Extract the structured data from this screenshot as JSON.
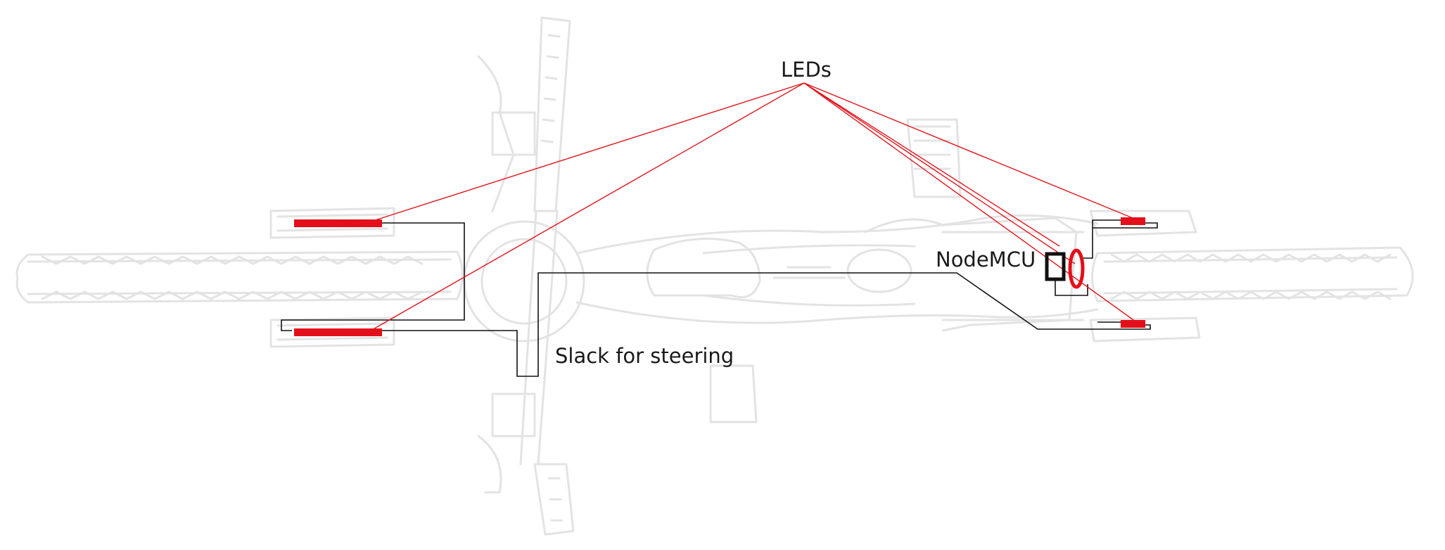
{
  "labels": {
    "leds": "LEDs",
    "nodemcu": "NodeMCU",
    "slack": "Slack for steering"
  },
  "colors": {
    "led_red": "#e30f1a",
    "pointer_red": "#e0161d",
    "wire": "#111111",
    "bike_outline": "#e3e3e3"
  }
}
